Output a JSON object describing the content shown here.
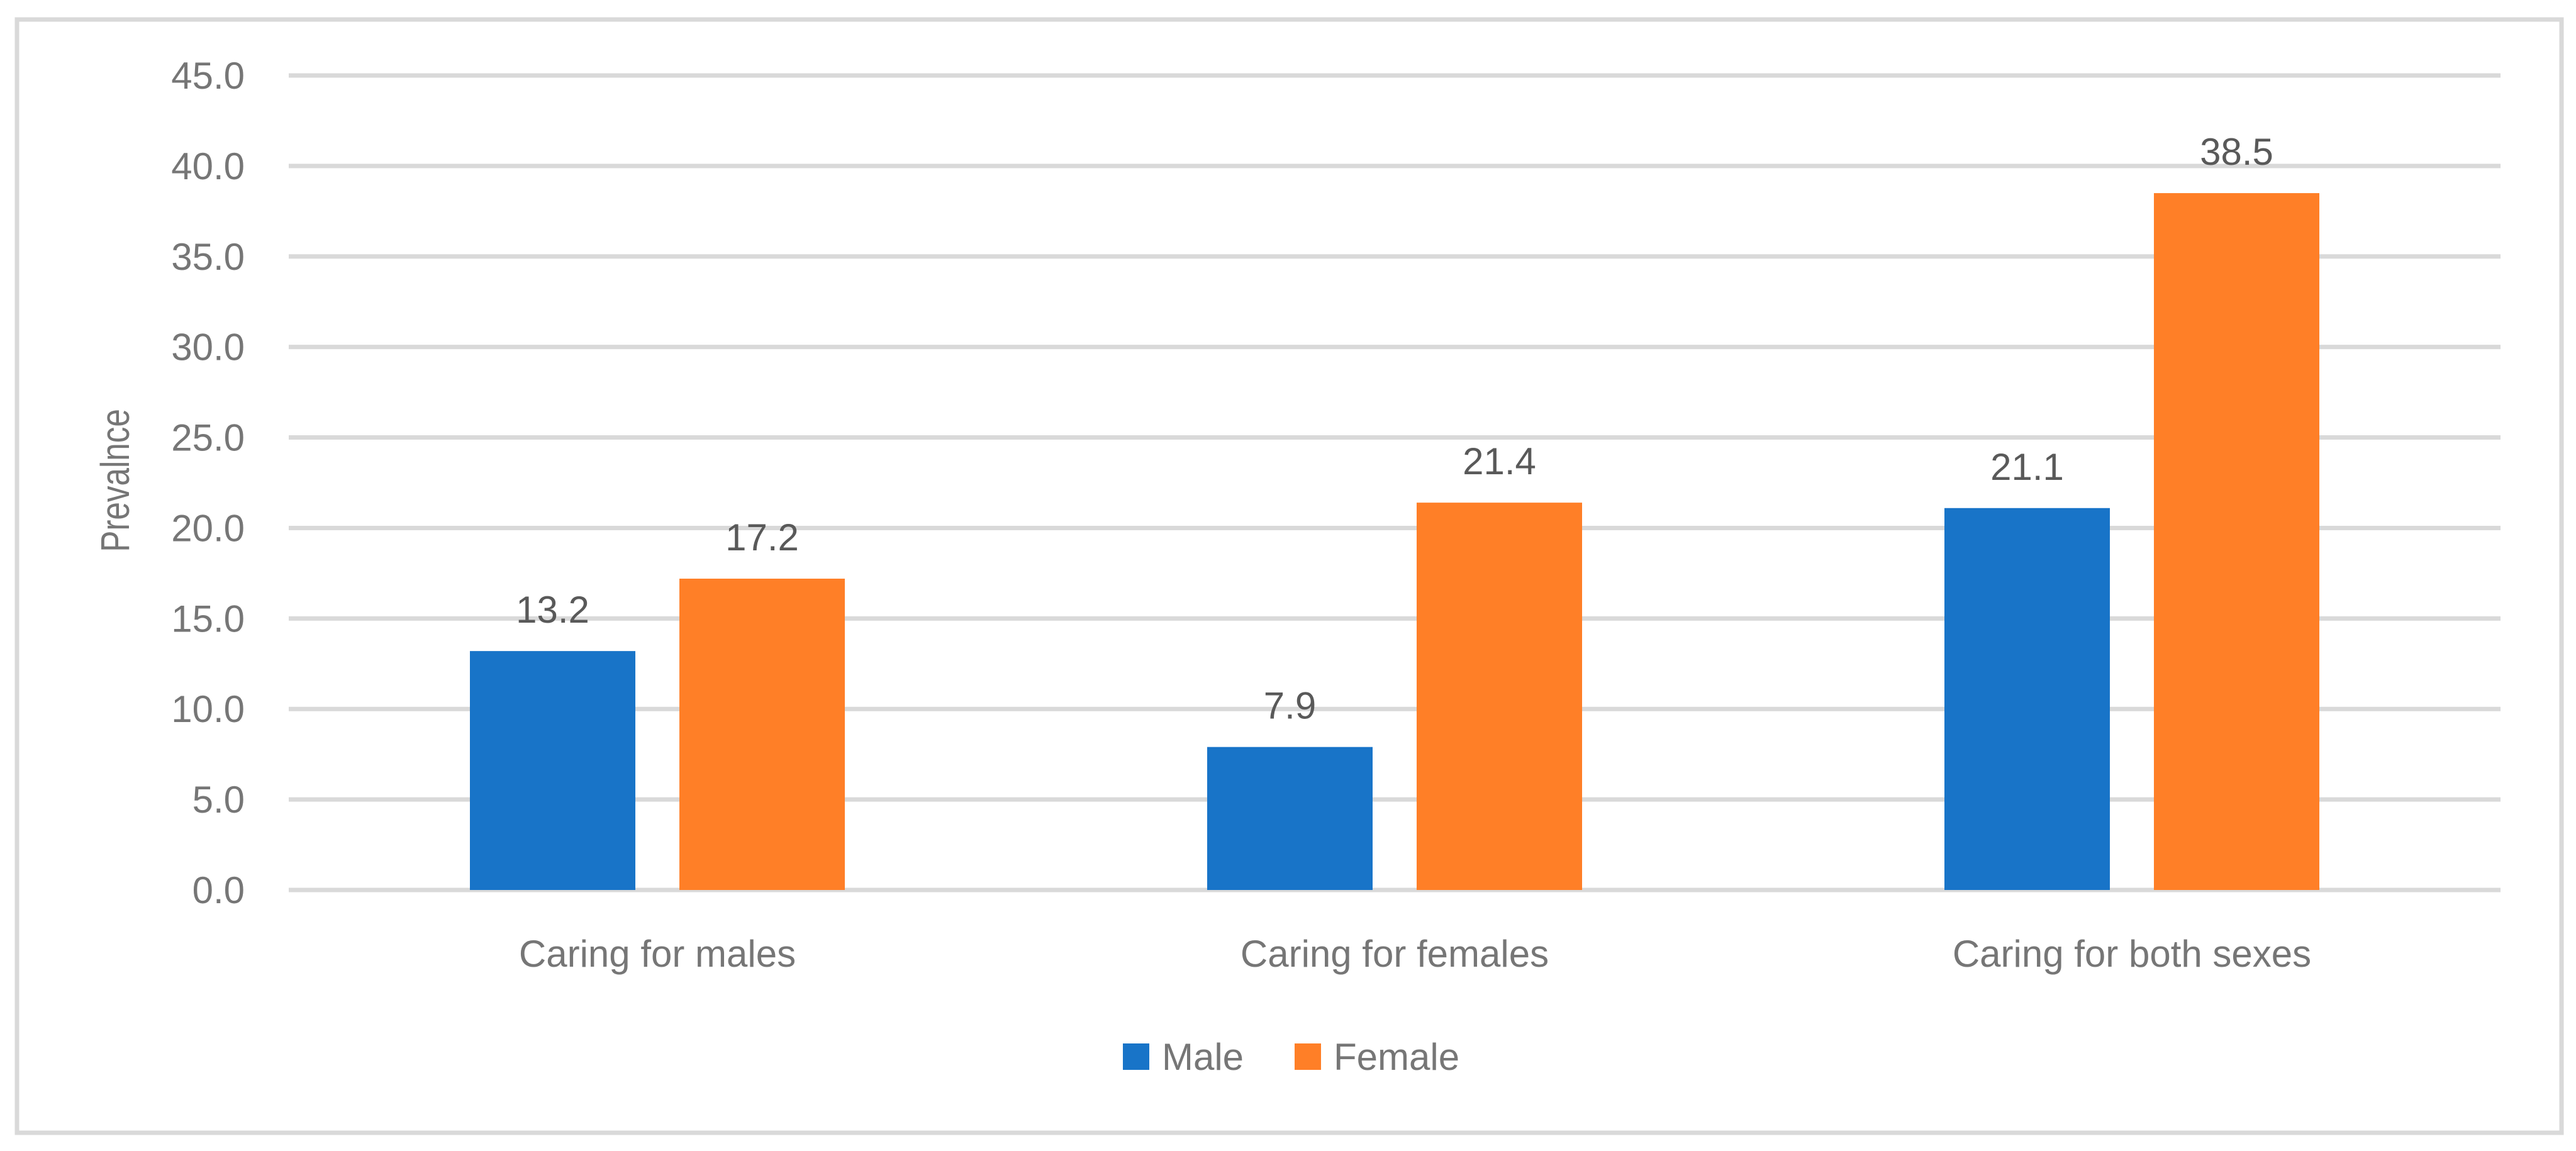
{
  "chart_data": {
    "type": "bar",
    "title": "",
    "xlabel": "",
    "ylabel": "Prevalnce",
    "ylim": [
      0,
      45
    ],
    "yticks": [
      "0.0",
      "5.0",
      "10.0",
      "15.0",
      "20.0",
      "25.0",
      "30.0",
      "35.0",
      "40.0",
      "45.0"
    ],
    "grid": true,
    "legend_position": "bottom",
    "categories": [
      "Caring for males",
      "Caring for females",
      "Caring for both sexes"
    ],
    "series": [
      {
        "name": "Male",
        "color": "#1874C8",
        "values": [
          13.2,
          7.9,
          21.1
        ]
      },
      {
        "name": "Female",
        "color": "#FF7F27",
        "values": [
          17.2,
          21.4,
          38.5
        ]
      }
    ]
  }
}
